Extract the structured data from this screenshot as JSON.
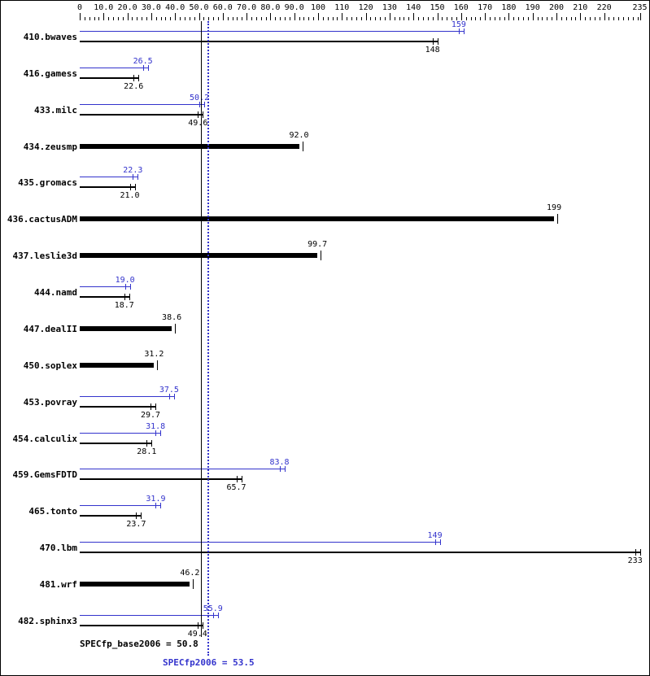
{
  "chart_data": {
    "type": "bar",
    "orientation": "horizontal",
    "grid": false,
    "legend": "none",
    "colors": {
      "peak": "#3333cc",
      "base": "#000000"
    },
    "axis": {
      "min": 0,
      "max": 235,
      "minor_step": 2,
      "ticks": [
        {
          "v": 0,
          "label": "0"
        },
        {
          "v": 10,
          "label": "10.0"
        },
        {
          "v": 20,
          "label": "20.0"
        },
        {
          "v": 30,
          "label": "30.0"
        },
        {
          "v": 40,
          "label": "40.0"
        },
        {
          "v": 50,
          "label": "50.0"
        },
        {
          "v": 60,
          "label": "60.0"
        },
        {
          "v": 70,
          "label": "70.0"
        },
        {
          "v": 80,
          "label": "80.0"
        },
        {
          "v": 90,
          "label": "90.0"
        },
        {
          "v": 100,
          "label": "100"
        },
        {
          "v": 110,
          "label": "110"
        },
        {
          "v": 120,
          "label": "120"
        },
        {
          "v": 130,
          "label": "130"
        },
        {
          "v": 140,
          "label": "140"
        },
        {
          "v": 150,
          "label": "150"
        },
        {
          "v": 160,
          "label": "160"
        },
        {
          "v": 170,
          "label": "170"
        },
        {
          "v": 180,
          "label": "180"
        },
        {
          "v": 190,
          "label": "190"
        },
        {
          "v": 200,
          "label": "200"
        },
        {
          "v": 210,
          "label": "210"
        },
        {
          "v": 220,
          "label": "220"
        },
        {
          "v": 235,
          "label": "235"
        }
      ]
    },
    "benchmarks": [
      {
        "name": "410.bwaves",
        "peak": 159,
        "peak_label": "159",
        "base": 148,
        "base_label": "148"
      },
      {
        "name": "416.gamess",
        "peak": 26.5,
        "peak_label": "26.5",
        "base": 22.6,
        "base_label": "22.6"
      },
      {
        "name": "433.milc",
        "peak": 50.2,
        "peak_label": "50.2",
        "base": 49.6,
        "base_label": "49.6"
      },
      {
        "name": "434.zeusmp",
        "peak": null,
        "peak_label": null,
        "base": 92.0,
        "base_label": "92.0"
      },
      {
        "name": "435.gromacs",
        "peak": 22.3,
        "peak_label": "22.3",
        "base": 21.0,
        "base_label": "21.0"
      },
      {
        "name": "436.cactusADM",
        "peak": null,
        "peak_label": null,
        "base": 199,
        "base_label": "199"
      },
      {
        "name": "437.leslie3d",
        "peak": null,
        "peak_label": null,
        "base": 99.7,
        "base_label": "99.7"
      },
      {
        "name": "444.namd",
        "peak": 19.0,
        "peak_label": "19.0",
        "base": 18.7,
        "base_label": "18.7"
      },
      {
        "name": "447.dealII",
        "peak": null,
        "peak_label": null,
        "base": 38.6,
        "base_label": "38.6"
      },
      {
        "name": "450.soplex",
        "peak": null,
        "peak_label": null,
        "base": 31.2,
        "base_label": "31.2"
      },
      {
        "name": "453.povray",
        "peak": 37.5,
        "peak_label": "37.5",
        "base": 29.7,
        "base_label": "29.7"
      },
      {
        "name": "454.calculix",
        "peak": 31.8,
        "peak_label": "31.8",
        "base": 28.1,
        "base_label": "28.1"
      },
      {
        "name": "459.GemsFDTD",
        "peak": 83.8,
        "peak_label": "83.8",
        "base": 65.7,
        "base_label": "65.7"
      },
      {
        "name": "465.tonto",
        "peak": 31.9,
        "peak_label": "31.9",
        "base": 23.7,
        "base_label": "23.7"
      },
      {
        "name": "470.lbm",
        "peak": 149,
        "peak_label": "149",
        "base": 233,
        "base_label": "233"
      },
      {
        "name": "481.wrf",
        "peak": null,
        "peak_label": null,
        "base": 46.2,
        "base_label": "46.2"
      },
      {
        "name": "482.sphinx3",
        "peak": 55.9,
        "peak_label": "55.9",
        "base": 49.4,
        "base_label": "49.4"
      }
    ],
    "footer": {
      "base_text": "SPECfp_base2006 = 50.8",
      "base_value": 50.8,
      "peak_text": "SPECfp2006 = 53.5",
      "peak_value": 53.5
    }
  }
}
